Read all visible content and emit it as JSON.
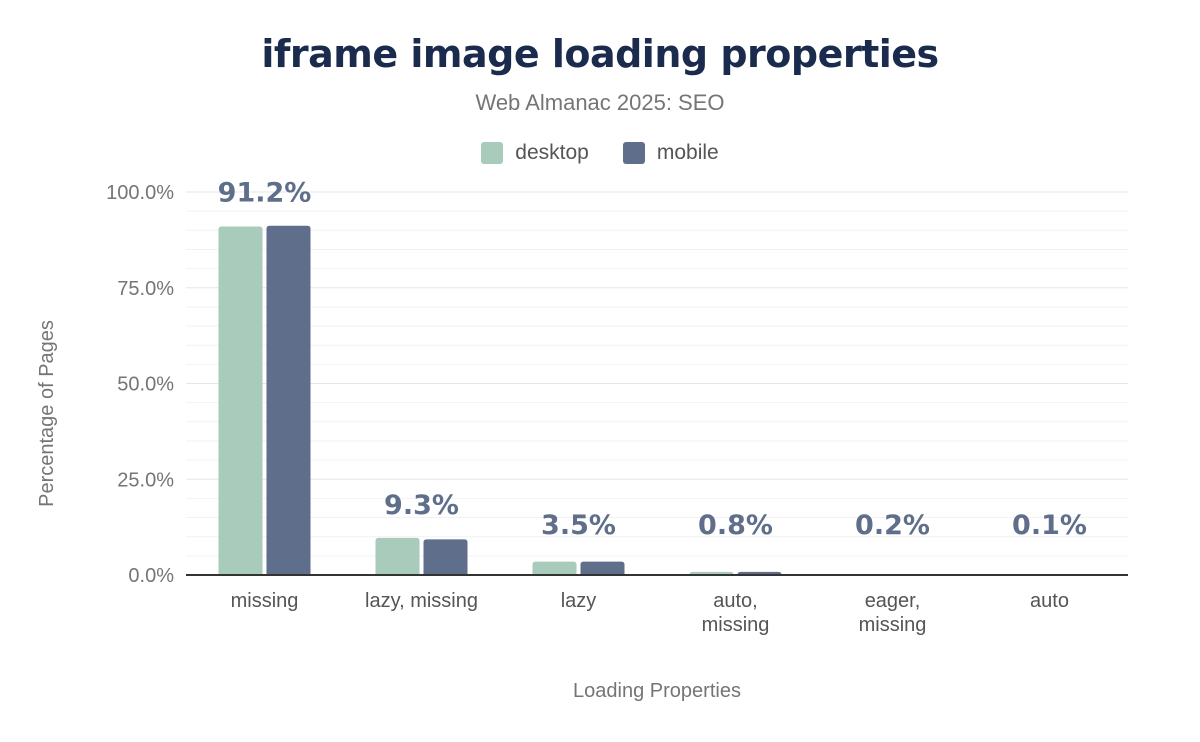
{
  "chart_data": {
    "type": "bar",
    "title": "iframe image loading properties",
    "subtitle": "Web Almanac 2025: SEO",
    "xlabel": "Loading Properties",
    "ylabel": "Percentage of Pages",
    "ylim": [
      0,
      100
    ],
    "y_ticks": [
      "0.0%",
      "25.0%",
      "50.0%",
      "75.0%",
      "100.0%"
    ],
    "grid": true,
    "legend_position": "top",
    "categories": [
      [
        "missing"
      ],
      [
        "lazy, missing"
      ],
      [
        "lazy"
      ],
      [
        "auto,",
        "missing"
      ],
      [
        "eager,",
        "missing"
      ],
      [
        "auto"
      ]
    ],
    "series": [
      {
        "name": "desktop",
        "color": "#a8cbbb",
        "values": [
          91.0,
          9.7,
          3.5,
          0.8,
          0.2,
          0.1
        ]
      },
      {
        "name": "mobile",
        "color": "#5f6f8b",
        "values": [
          91.2,
          9.3,
          3.5,
          0.8,
          0.2,
          0.1
        ]
      }
    ],
    "data_labels": [
      "91.2%",
      "9.3%",
      "3.5%",
      "0.8%",
      "0.2%",
      "0.1%"
    ],
    "data_label_color": "#5f6f8b"
  }
}
